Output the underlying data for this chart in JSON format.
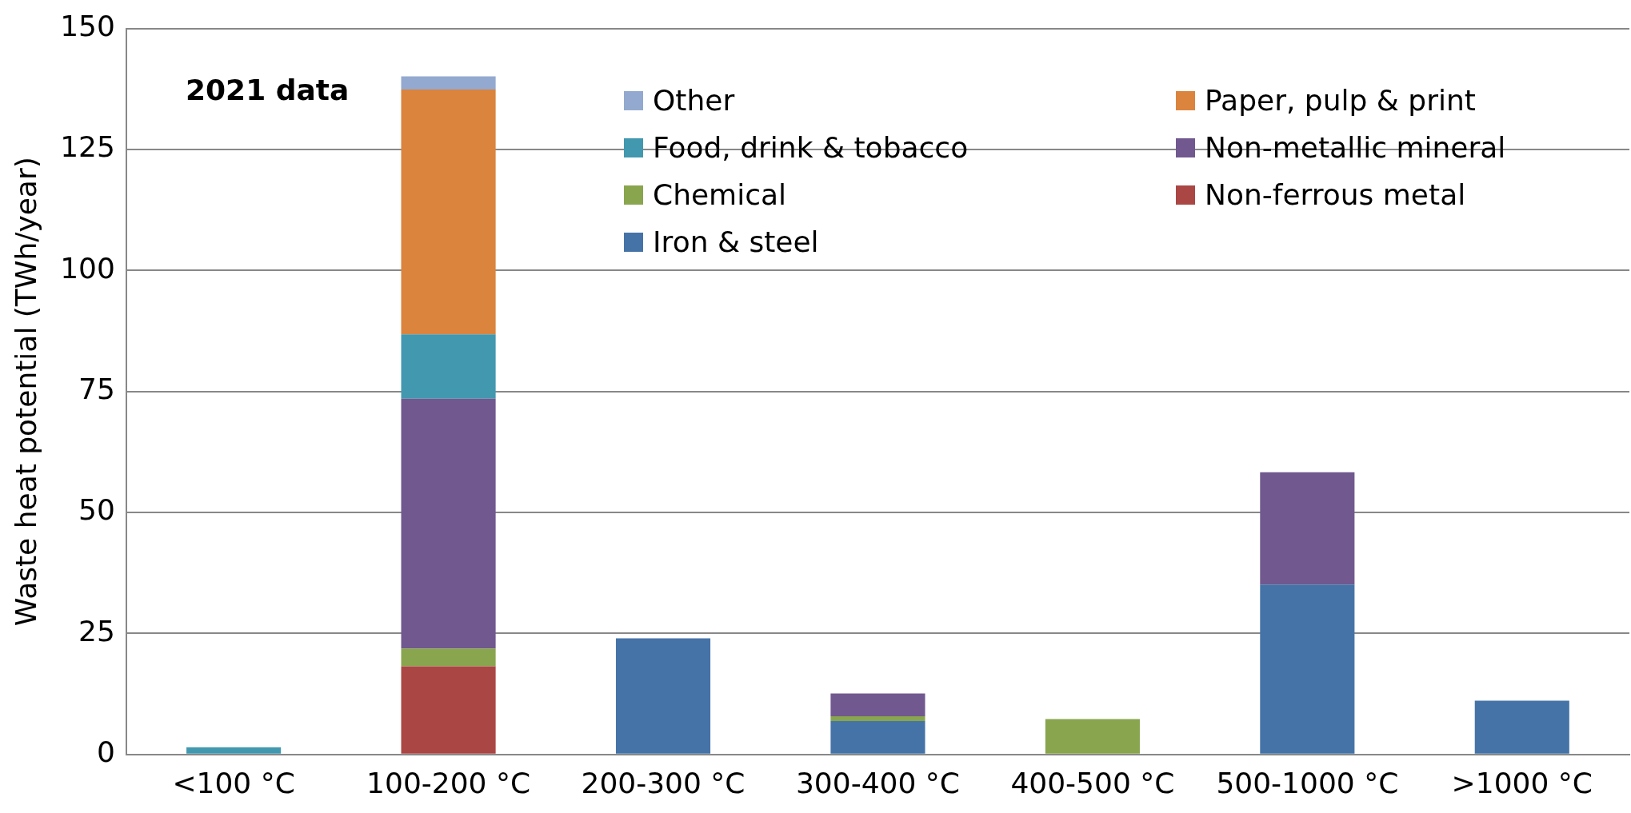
{
  "chart_data": {
    "type": "bar",
    "stacked": true,
    "ylabel": "Waste heat potential (TWh/year)",
    "annotations": [
      "2021 data"
    ],
    "categories": [
      "<100 °C",
      "100-200 °C",
      "200-300 °C",
      "300-400 °C",
      "400-500 °C",
      "500-1000 °C",
      ">1000 °C"
    ],
    "series": [
      {
        "name": "Iron & steel",
        "color": "#4573a7",
        "values": [
          null,
          null,
          24,
          6.9,
          null,
          35.1,
          11.1
        ]
      },
      {
        "name": "Non-ferrous metal",
        "color": "#aa4644",
        "values": [
          null,
          18.2,
          null,
          null,
          null,
          null,
          null
        ]
      },
      {
        "name": "Chemical",
        "color": "#89a54e",
        "values": [
          null,
          3.7,
          null,
          1.0,
          7.3,
          null,
          null
        ]
      },
      {
        "name": "Non-metallic mineral",
        "color": "#71588f",
        "values": [
          null,
          51.6,
          null,
          4.7,
          null,
          23.2,
          null
        ]
      },
      {
        "name": "Food, drink & tobacco",
        "color": "#4298af",
        "values": [
          1.5,
          13.3,
          null,
          null,
          null,
          null,
          null
        ]
      },
      {
        "name": "Paper, pulp & print",
        "color": "#db843d",
        "values": [
          null,
          50.6,
          null,
          null,
          null,
          null,
          null
        ]
      },
      {
        "name": "Other",
        "color": "#93a9cf",
        "values": [
          null,
          2.7,
          null,
          null,
          null,
          null,
          null
        ]
      }
    ],
    "ylim": [
      0,
      150
    ],
    "yticks": [
      0,
      25,
      50,
      75,
      100,
      125,
      150
    ],
    "grid": "y",
    "legend": "top right"
  }
}
